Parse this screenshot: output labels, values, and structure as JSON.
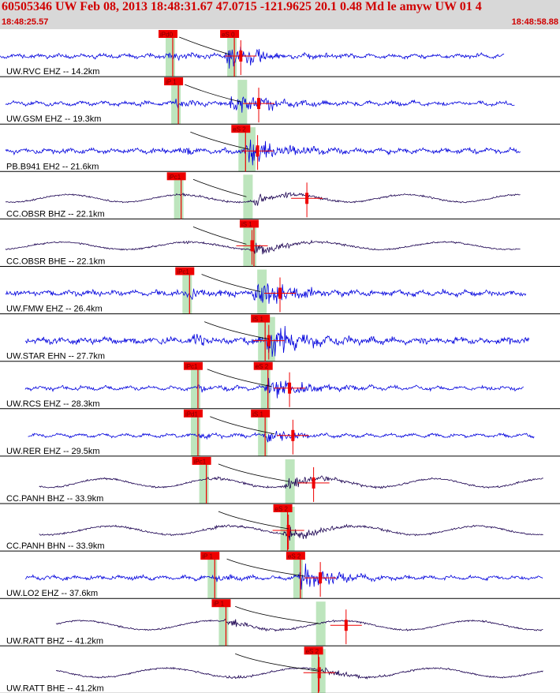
{
  "header": {
    "title": "60505346 UW Feb 08, 2013 18:48:31.67    47.0715 -121.9625 20.1 0.48 Md le amyw UW 01    4",
    "start_time": "18:48:25.57",
    "end_time": "18:48:58.88"
  },
  "colors": {
    "header_bg": "#d8d8d8",
    "header_text": "#d00000",
    "trace_short_period": "#0000dd",
    "trace_broadband": "#1a0050",
    "pick_flag": "#ee0000",
    "pick_window": "#bde5bd",
    "travel_time_curve": "#000000"
  },
  "chart_data": {
    "type": "line",
    "title": "60505346 UW Feb 08, 2013 18:48:31.67    47.0715 -121.9625 20.1 0.48 Md le amyw UW 01    4",
    "xlim": [
      "18:48:25.57",
      "18:48:58.88"
    ],
    "traces": [
      {
        "label": "UW.RVC EHZ -- 14.2km",
        "type": "sp",
        "start": 0.0,
        "end": 0.9,
        "amp": 0.1,
        "p": 0.3,
        "s": 0.41,
        "burst": 0.41,
        "peak": 0.55,
        "noise": 0.16,
        "seis_mark": 0.43,
        "picks": [
          {
            "label": "iPd0",
            "pos": 0.3
          },
          {
            "label": "eS 0",
            "pos": 0.41
          }
        ]
      },
      {
        "label": "UW.GSM EHZ -- 19.3km",
        "type": "sp",
        "start": 0.01,
        "end": 0.92,
        "amp": 0.1,
        "p": 0.31,
        "s": 0.43,
        "burst": 0.42,
        "peak": 0.55,
        "noise": 0.18,
        "seis_mark": 0.462,
        "picks": [
          {
            "label": "iP 1",
            "pos": 0.31
          }
        ]
      },
      {
        "label": "PB.B941 EH2 -- 21.6km",
        "type": "sp",
        "start": 0.01,
        "end": 0.93,
        "amp": 0.11,
        "p": 0.32,
        "s": 0.445,
        "burst": 0.445,
        "peak": 0.45,
        "noise": 0.22,
        "seis_mark": 0.46,
        "picks": [
          {
            "label": "eS 2",
            "pos": 0.43
          }
        ]
      },
      {
        "label": "CC.OBSR BHZ -- 22.1km",
        "type": "bb",
        "start": 0.01,
        "end": 0.93,
        "amp": 0.12,
        "p": 0.325,
        "s": 0.44,
        "burst": 0.455,
        "peak": 0.45,
        "noise": 0.05,
        "seis_mark": 0.548,
        "picks": [
          {
            "label": "iPc1",
            "pos": 0.315
          }
        ]
      },
      {
        "label": "CC.OBSR BHE -- 22.1km",
        "type": "bb",
        "start": 0.01,
        "end": 0.93,
        "amp": 0.12,
        "p": 0.325,
        "s": 0.44,
        "burst": 0.455,
        "peak": 0.55,
        "noise": 0.05,
        "seis_mark": 0.45,
        "picks": [
          {
            "label": "iS 1",
            "pos": 0.445
          }
        ]
      },
      {
        "label": "UW.FMW EHZ -- 26.4km",
        "type": "sp",
        "start": 0.01,
        "end": 0.94,
        "amp": 0.11,
        "p": 0.34,
        "s": 0.465,
        "burst": 0.46,
        "peak": 0.5,
        "noise": 0.3,
        "seis_mark": 0.5,
        "picks": [
          {
            "label": "iPc1",
            "pos": 0.33
          }
        ]
      },
      {
        "label": "UW.STAR EHN -- 27.7km",
        "type": "sp",
        "start": 0.045,
        "end": 0.945,
        "amp": 0.11,
        "p": 0.345,
        "s": 0.48,
        "burst": 0.48,
        "peak": 0.45,
        "noise": 0.4,
        "seis_mark": 0.48,
        "picks": [
          {
            "label": "iS 1",
            "pos": 0.465
          }
        ]
      },
      {
        "label": "UW.RCS EHZ -- 28.3km",
        "type": "sp",
        "start": 0.045,
        "end": 0.935,
        "amp": 0.1,
        "p": 0.35,
        "s": 0.485,
        "burst": 0.48,
        "peak": 0.6,
        "noise": 0.12,
        "seis_mark": 0.517,
        "picks": [
          {
            "label": "iPc1",
            "pos": 0.345
          },
          {
            "label": "eS 2",
            "pos": 0.47
          }
        ]
      },
      {
        "label": "UW.RER EHZ -- 29.5km",
        "type": "sp",
        "start": 0.05,
        "end": 0.955,
        "amp": 0.1,
        "p": 0.355,
        "s": 0.49,
        "burst": 0.48,
        "peak": 0.35,
        "noise": 0.03,
        "seis_mark": 0.523,
        "picks": [
          {
            "label": "iPd1",
            "pos": 0.345
          },
          {
            "label": "iS 1",
            "pos": 0.465
          }
        ]
      },
      {
        "label": "CC.PANH BHZ -- 33.9km",
        "type": "bb",
        "start": 0.07,
        "end": 0.97,
        "amp": 0.14,
        "p": 0.37,
        "s": 0.515,
        "burst": 0.515,
        "peak": 0.45,
        "noise": 0.05,
        "seis_mark": 0.56,
        "picks": [
          {
            "label": "iPc1",
            "pos": 0.36
          }
        ]
      },
      {
        "label": "CC.PANH BHN -- 33.9km",
        "type": "bb",
        "start": 0.07,
        "end": 0.97,
        "amp": 0.14,
        "p": 0.37,
        "s": 0.515,
        "burst": 0.515,
        "peak": 0.55,
        "noise": 0.05,
        "seis_mark": 0.515,
        "picks": [
          {
            "label": "eS 2",
            "pos": 0.505
          }
        ]
      },
      {
        "label": "UW.LO2 EHZ -- 37.6km",
        "type": "sp",
        "start": 0.045,
        "end": 0.97,
        "amp": 0.1,
        "p": 0.385,
        "s": 0.545,
        "burst": 0.54,
        "peak": 0.55,
        "noise": 0.15,
        "seis_mark": 0.572,
        "picks": [
          {
            "label": "iP 1",
            "pos": 0.375
          },
          {
            "label": "eS 2",
            "pos": 0.528
          }
        ]
      },
      {
        "label": "UW.RATT BHZ -- 41.2km",
        "type": "bb",
        "start": 0.1,
        "end": 0.97,
        "amp": 0.15,
        "p": 0.4,
        "s": 0.57,
        "burst": 0.415,
        "peak": 0.25,
        "noise": 0.04,
        "seis_mark": 0.618,
        "picks": [
          {
            "label": "iP 1",
            "pos": 0.395
          }
        ]
      },
      {
        "label": "UW.RATT BHE -- 41.2km",
        "type": "bb",
        "start": 0.1,
        "end": 0.97,
        "amp": 0.15,
        "p": 0.4,
        "s": 0.57,
        "burst": 0.58,
        "peak": 0.3,
        "noise": 0.04,
        "seis_mark": 0.57,
        "picks": [
          {
            "label": "eS 2",
            "pos": 0.56
          }
        ]
      }
    ]
  }
}
